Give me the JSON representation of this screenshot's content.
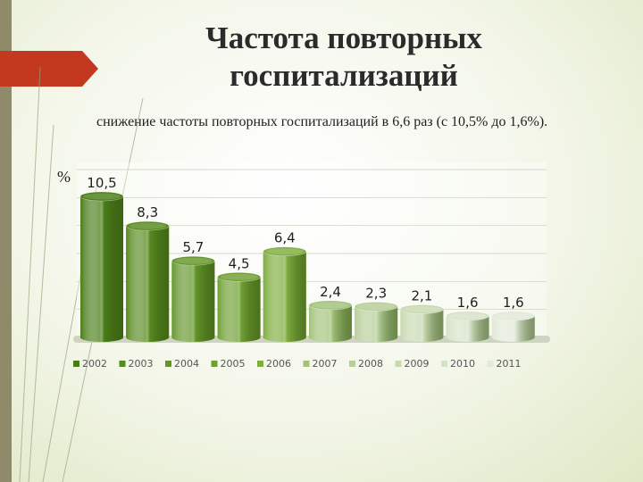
{
  "slide": {
    "title_line1": "Частота повторных",
    "title_line2": "госпитализаций",
    "subtitle": "снижение частоты повторных госпитализаций в 6,6 раз (с 10,5% до 1,6%)."
  },
  "chart_data": {
    "type": "bar",
    "style": "3d-cylinder",
    "unit_label": "%",
    "categories": [
      "2002",
      "2003",
      "2004",
      "2005",
      "2006",
      "2007",
      "2008",
      "2009",
      "2010",
      "2011"
    ],
    "values": [
      10.5,
      8.3,
      5.7,
      4.5,
      6.4,
      2.4,
      2.3,
      2.1,
      1.6,
      1.6
    ],
    "value_labels": [
      "10,5",
      "8,3",
      "5,7",
      "4,5",
      "6,4",
      "2,4",
      "2,3",
      "2,1",
      "1,6",
      "1,6"
    ],
    "legend": [
      "2002",
      "2003",
      "2004",
      "2005",
      "2006",
      "2007",
      "2008",
      "2009",
      "2010",
      "2011"
    ],
    "legend_position": "bottom",
    "colors": [
      "#4a7d18",
      "#578a1f",
      "#64962b",
      "#6f9f33",
      "#7fae3f",
      "#a2c27a",
      "#b6ce98",
      "#c8d9b1",
      "#d6e2c8",
      "#e1e9d8"
    ],
    "ylim": [
      0,
      11
    ],
    "grid": true
  }
}
